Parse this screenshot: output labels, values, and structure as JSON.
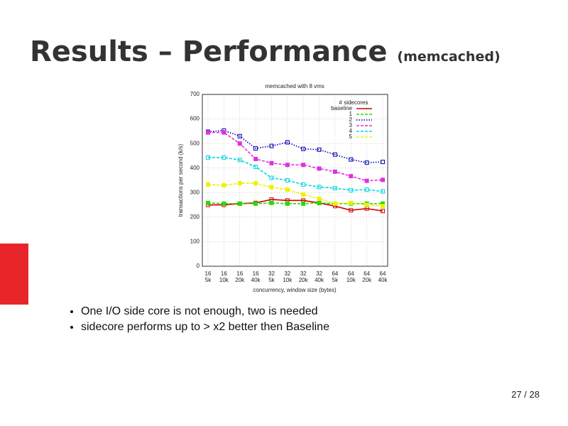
{
  "slide": {
    "title": "Results – Performance",
    "subtitle": "(memcached)",
    "bullets": [
      "One I/O side core is not enough, two is needed",
      "sidecore performs up to > x2 better then Baseline"
    ],
    "page": "27 / 28"
  },
  "chart_data": {
    "type": "line",
    "title": "memcached with 8 vms",
    "x_label": "concurrency, window size (bytes)",
    "y_label": "transactions per second (k/s)",
    "legend_title": "# sidecores",
    "legend": "upper right",
    "grid": true,
    "categories": [
      [
        "16",
        "5k"
      ],
      [
        "16",
        "10k"
      ],
      [
        "16",
        "20k"
      ],
      [
        "16",
        "40k"
      ],
      [
        "32",
        "5k"
      ],
      [
        "32",
        "10k"
      ],
      [
        "32",
        "20k"
      ],
      [
        "32",
        "40k"
      ],
      [
        "64",
        "5k"
      ],
      [
        "64",
        "10k"
      ],
      [
        "64",
        "20k"
      ],
      [
        "64",
        "40k"
      ]
    ],
    "ylim": [
      0,
      700
    ],
    "yticks": [
      0,
      100,
      200,
      300,
      400,
      500,
      600,
      700
    ],
    "series": [
      {
        "name": "baseline",
        "color": "#d00000",
        "linestyle": "solid",
        "values": [
          250,
          250,
          255,
          258,
          272,
          268,
          268,
          258,
          245,
          228,
          235,
          225
        ]
      },
      {
        "name": "1",
        "color": "#22dd00",
        "linestyle": "dashed",
        "values": [
          258,
          255,
          255,
          255,
          258,
          255,
          255,
          258,
          255,
          255,
          255,
          255
        ]
      },
      {
        "name": "2",
        "color": "#0000b0",
        "linestyle": "dotted",
        "values": [
          548,
          553,
          530,
          480,
          490,
          505,
          478,
          475,
          455,
          435,
          422,
          425
        ]
      },
      {
        "name": "3",
        "color": "#e030e0",
        "linestyle": "dashed",
        "values": [
          545,
          545,
          500,
          437,
          420,
          413,
          413,
          398,
          385,
          367,
          348,
          352
        ]
      },
      {
        "name": "4",
        "color": "#00d8e0",
        "linestyle": "dashed",
        "values": [
          443,
          443,
          433,
          405,
          360,
          350,
          333,
          323,
          318,
          310,
          312,
          305
        ]
      },
      {
        "name": "5",
        "color": "#f0f000",
        "linestyle": "dashed",
        "values": [
          333,
          330,
          338,
          338,
          322,
          312,
          292,
          275,
          255,
          258,
          250,
          245
        ]
      }
    ]
  }
}
